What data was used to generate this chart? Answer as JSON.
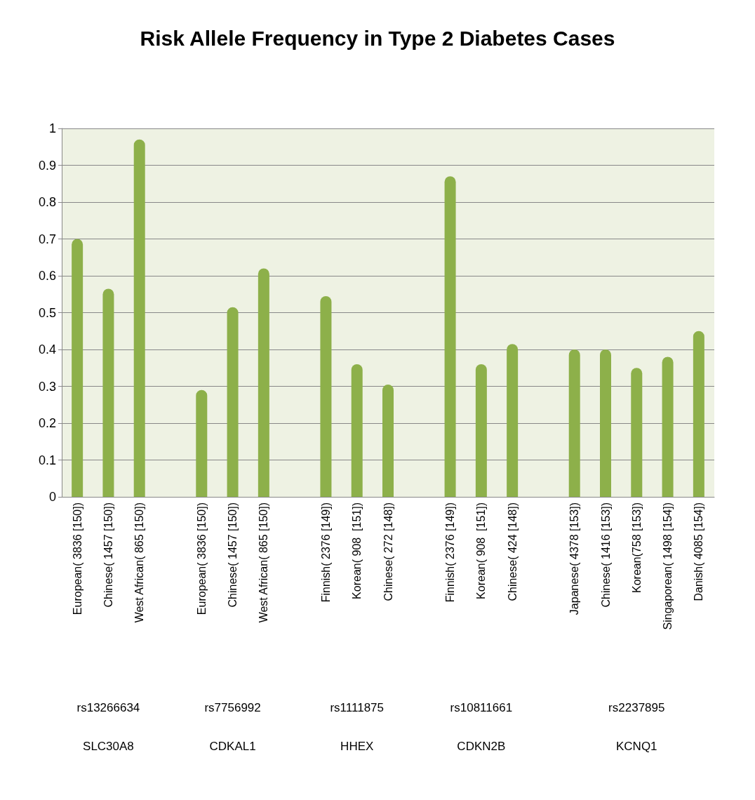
{
  "chart_data": {
    "type": "bar",
    "title": "Risk Allele Frequency in Type 2 Diabetes Cases",
    "categories": [
      "European( 3836 [150])",
      "Chinese( 1457 [150])",
      "West African( 865 [150])",
      null,
      "European( 3836 [150])",
      "Chinese( 1457 [150])",
      "West African( 865 [150])",
      null,
      "Finnish( 2376 [149])",
      "Korean( 908  [151])",
      "Chinese( 272 [148])",
      null,
      "Finnish( 2376 [149])",
      "Korean( 908  [151])",
      "Chinese( 424 [148])",
      null,
      "Japanese( 4378 [153])",
      "Chinese( 1416 [153])",
      "Korean(758 [153])",
      "Singaporean( 1498 [154])",
      "Danish( 4085 [154])"
    ],
    "values": [
      0.7,
      0.565,
      0.97,
      null,
      0.29,
      0.515,
      0.62,
      null,
      0.545,
      0.36,
      0.305,
      null,
      0.87,
      0.36,
      0.415,
      null,
      0.4,
      0.4,
      0.35,
      0.38,
      0.45
    ],
    "color": "#8db04a",
    "ylim": [
      0,
      1
    ],
    "yticks": [
      0,
      0.1,
      0.2,
      0.3,
      0.4,
      0.5,
      0.6,
      0.7,
      0.8,
      0.9,
      1
    ],
    "grid": "y",
    "annotations": [
      "rs13266634",
      "rs7756992",
      "rs1111875",
      "rs10811661",
      "rs2237895",
      "SLC30A8",
      "CDKAL1",
      "HHEX",
      "CDKN2B",
      "KCNQ1"
    ]
  }
}
